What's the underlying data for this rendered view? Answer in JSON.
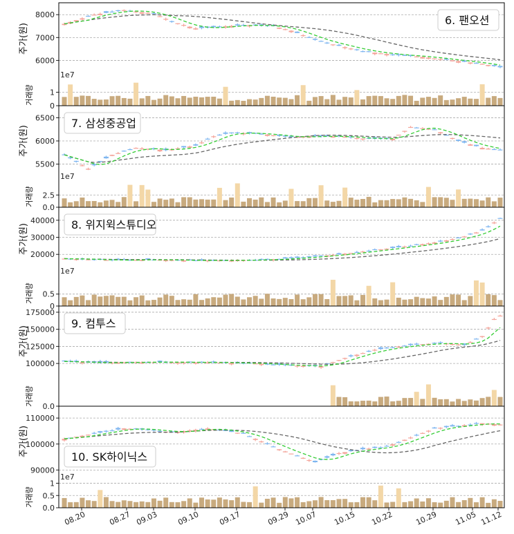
{
  "chart_data": {
    "type": "candlestick",
    "x_tick_labels": [
      "08.20",
      "08.27",
      "09.03",
      "09.10",
      "09.17",
      "09.29",
      "10.07",
      "10.15",
      "10.22",
      "10.29",
      "11.05",
      "11.12"
    ],
    "colors": {
      "up": "#f4a59b",
      "down": "#7fb6f0",
      "ma_short": "#33cc33",
      "ma_long": "#666666",
      "volume": "#c8aa7e",
      "volume_high": "#f3d7a7",
      "grid": "#aaaaaa"
    },
    "panels": [
      {
        "title": "6. 팬오션",
        "ylabel": "주가(원)",
        "vlabel": "거래량",
        "yticks": [
          "6000",
          "7000",
          "8000"
        ],
        "ylim": [
          5500,
          8400
        ],
        "vticks": [
          "0",
          "1"
        ],
        "vlim": [
          0,
          2.0
        ],
        "vexp": "1e7",
        "title_pos": "top-right",
        "anchors": [
          [
            0,
            7600
          ],
          [
            5,
            8000
          ],
          [
            10,
            8200
          ],
          [
            15,
            8050
          ],
          [
            18,
            7700
          ],
          [
            22,
            7400
          ],
          [
            25,
            7450
          ],
          [
            30,
            7550
          ],
          [
            35,
            7500
          ],
          [
            38,
            7300
          ],
          [
            42,
            6900
          ],
          [
            45,
            6700
          ],
          [
            50,
            6400
          ],
          [
            55,
            6250
          ],
          [
            60,
            6150
          ],
          [
            65,
            6000
          ],
          [
            70,
            5850
          ],
          [
            73,
            5700
          ]
        ]
      },
      {
        "title": "7. 삼성중공업",
        "ylabel": "주가(원)",
        "vlabel": "거래량",
        "yticks": [
          "5500",
          "6000",
          "6500"
        ],
        "ylim": [
          5300,
          6700
        ],
        "vticks": [
          "0.0",
          "2.5"
        ],
        "vlim": [
          0,
          5.5
        ],
        "vexp": "1e7",
        "title_pos": "top-left",
        "anchors": [
          [
            0,
            5700
          ],
          [
            4,
            5400
          ],
          [
            8,
            5700
          ],
          [
            12,
            5850
          ],
          [
            17,
            5800
          ],
          [
            22,
            5900
          ],
          [
            25,
            6100
          ],
          [
            28,
            6180
          ],
          [
            33,
            6150
          ],
          [
            38,
            6080
          ],
          [
            42,
            6100
          ],
          [
            46,
            6100
          ],
          [
            50,
            6050
          ],
          [
            55,
            6050
          ],
          [
            58,
            6300
          ],
          [
            62,
            6250
          ],
          [
            66,
            6000
          ],
          [
            70,
            5850
          ],
          [
            73,
            5800
          ]
        ]
      },
      {
        "title": "8. 위지윅스튜디오",
        "ylabel": "주가(원)",
        "vlabel": "거래량",
        "yticks": [
          "20000",
          "30000",
          "40000"
        ],
        "ylim": [
          12000,
          46000
        ],
        "vticks": [
          "0",
          "0.5"
        ],
        "vlim": [
          0,
          1.3
        ],
        "vexp": "1e7",
        "title_pos": "top-left",
        "anchors": [
          [
            0,
            17500
          ],
          [
            8,
            16600
          ],
          [
            15,
            16900
          ],
          [
            22,
            16400
          ],
          [
            28,
            16500
          ],
          [
            34,
            16900
          ],
          [
            40,
            18200
          ],
          [
            46,
            20000
          ],
          [
            52,
            22500
          ],
          [
            58,
            25000
          ],
          [
            63,
            27500
          ],
          [
            67,
            30500
          ],
          [
            70,
            34000
          ],
          [
            73,
            41000
          ]
        ]
      },
      {
        "title": "9. 컴투스",
        "ylabel": "주가(원)",
        "vlabel": "거래량",
        "yticks": [
          "100000",
          "125000",
          "150000",
          "175000"
        ],
        "ylim": [
          85000,
          180000
        ],
        "vticks": [
          "0.0"
        ],
        "vlim": [
          0,
          1.2
        ],
        "vexp": "",
        "title_pos": "top-left",
        "anchors": [
          [
            0,
            103000
          ],
          [
            5,
            101000
          ],
          [
            15,
            102000
          ],
          [
            25,
            101500
          ],
          [
            32,
            100000
          ],
          [
            38,
            97000
          ],
          [
            43,
            96000
          ],
          [
            47,
            108000
          ],
          [
            52,
            120000
          ],
          [
            58,
            127000
          ],
          [
            63,
            130000
          ],
          [
            67,
            127000
          ],
          [
            70,
            140000
          ],
          [
            72,
            165000
          ],
          [
            73,
            170000
          ]
        ]
      },
      {
        "title": "10. SK하이닉스",
        "ylabel": "주가(원)",
        "vlabel": "거래량",
        "yticks": [
          "90000",
          "100000",
          "110000"
        ],
        "ylim": [
          88500,
          113500
        ],
        "vticks": [
          "0.0",
          "0.5",
          "1"
        ],
        "vlim": [
          0,
          1.1
        ],
        "vexp": "1e7",
        "title_pos": "bottom-left",
        "anchors": [
          [
            0,
            102000
          ],
          [
            5,
            104000
          ],
          [
            10,
            106000
          ],
          [
            14,
            105500
          ],
          [
            18,
            104500
          ],
          [
            24,
            106000
          ],
          [
            30,
            104000
          ],
          [
            36,
            98000
          ],
          [
            42,
            93000
          ],
          [
            46,
            96500
          ],
          [
            50,
            98000
          ],
          [
            54,
            99000
          ],
          [
            58,
            102500
          ],
          [
            62,
            106000
          ],
          [
            66,
            107000
          ],
          [
            70,
            108000
          ],
          [
            73,
            107500
          ]
        ]
      }
    ]
  }
}
